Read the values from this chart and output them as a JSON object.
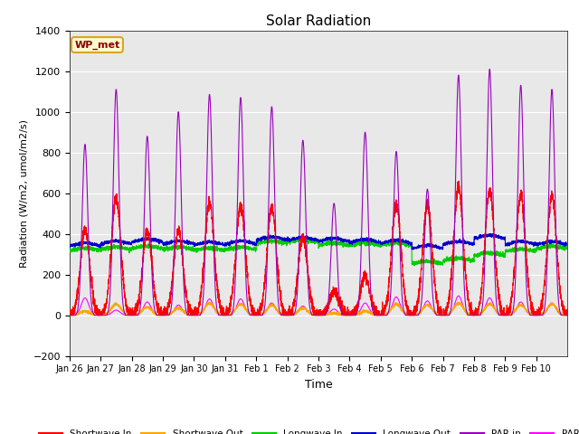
{
  "title": "Solar Radiation",
  "xlabel": "Time",
  "ylabel": "Radiation (W/m2, umol/m2/s)",
  "ylim": [
    -200,
    1400
  ],
  "yticks": [
    -200,
    0,
    200,
    400,
    600,
    800,
    1000,
    1200,
    1400
  ],
  "x_tick_labels": [
    "Jan 26",
    "Jan 27",
    "Jan 28",
    "Jan 29",
    "Jan 30",
    "Jan 31",
    "Feb 1",
    "Feb 2",
    "Feb 3",
    "Feb 4",
    "Feb 5",
    "Feb 6",
    "Feb 7",
    "Feb 8",
    "Feb 9",
    "Feb 10"
  ],
  "annotation_text": "WP_met",
  "annotation_color": "#8B0000",
  "annotation_bg": "#FFFACD",
  "annotation_border": "#DAA520",
  "colors": {
    "shortwave_in": "#FF0000",
    "shortwave_out": "#FFA500",
    "longwave_in": "#00CC00",
    "longwave_out": "#0000CC",
    "par_in": "#9900BB",
    "par_out": "#FF00FF"
  },
  "legend_labels": [
    "Shortwave In",
    "Shortwave Out",
    "Longwave In",
    "Longwave Out",
    "PAR in",
    "PAR out"
  ],
  "background_color": "#E8E8E8",
  "n_days": 16,
  "figsize": [
    6.4,
    4.8
  ],
  "dpi": 100
}
